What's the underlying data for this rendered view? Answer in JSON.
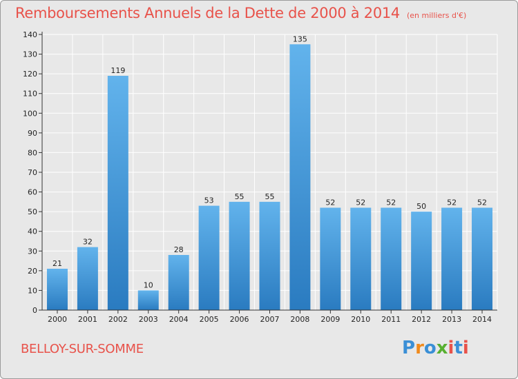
{
  "title": "Remboursements Annuels de la Dette de 2000 à 2014",
  "unit_note": "(en milliers d'€)",
  "place_name": "BELLOY-SUR-SOMME",
  "logo_text": "Proxiti",
  "colors": {
    "title": "#e8524a",
    "bar_top": "#62b3ec",
    "bar_bottom": "#2a7bc0",
    "background": "#e8e8e8",
    "grid": "#ffffff"
  },
  "chart_data": {
    "type": "bar",
    "title": "Remboursements Annuels de la Dette de 2000 à 2014",
    "xlabel": "",
    "ylabel": "",
    "categories": [
      "2000",
      "2001",
      "2002",
      "2003",
      "2004",
      "2005",
      "2006",
      "2007",
      "2008",
      "2009",
      "2010",
      "2011",
      "2012",
      "2013",
      "2014"
    ],
    "values": [
      21,
      32,
      119,
      10,
      28,
      53,
      55,
      55,
      135,
      52,
      52,
      52,
      50,
      52,
      52
    ],
    "ylim": [
      0,
      140
    ],
    "yticks": [
      0,
      10,
      20,
      30,
      40,
      50,
      60,
      70,
      80,
      90,
      100,
      110,
      120,
      130,
      140
    ],
    "grid": true,
    "data_labels": true
  }
}
